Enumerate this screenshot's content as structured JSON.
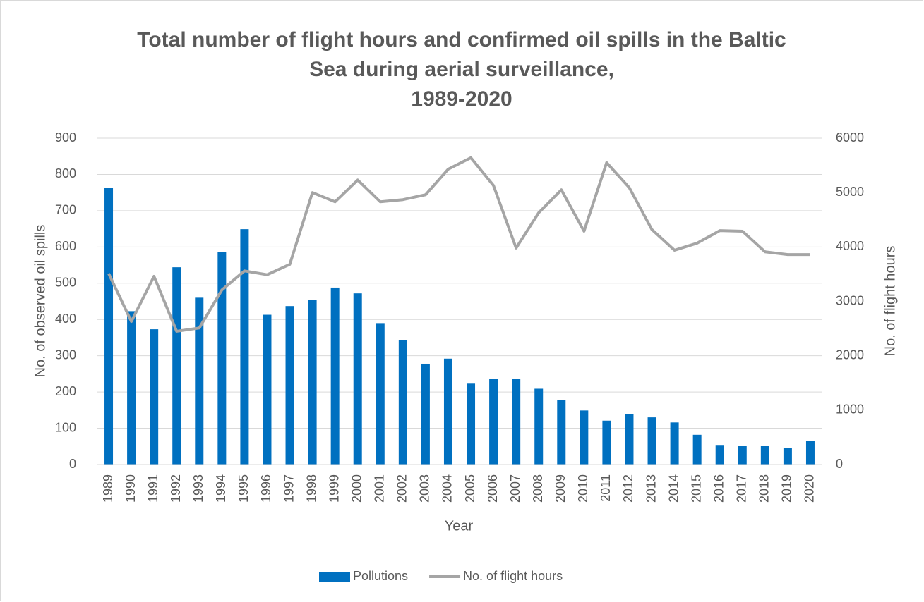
{
  "chart_data": {
    "type": "bar-line",
    "title": [
      "Total number of flight hours and confirmed oil spills in the Baltic",
      "Sea during aerial surveillance,",
      "1989-2020"
    ],
    "x_label": "Year",
    "y_label": "No. of observed oil spills",
    "y2_label": "No. of flight hours",
    "categories": [
      "1989",
      "1990",
      "1991",
      "1992",
      "1993",
      "1994",
      "1995",
      "1996",
      "1997",
      "1998",
      "1999",
      "2000",
      "2001",
      "2002",
      "2003",
      "2004",
      "2005",
      "2006",
      "2007",
      "2008",
      "2009",
      "2010",
      "2011",
      "2012",
      "2013",
      "2014",
      "2015",
      "2016",
      "2017",
      "2018",
      "2019",
      "2020"
    ],
    "series": [
      {
        "name": "Pollutions",
        "type": "bar",
        "color": "#0070c0",
        "values": [
          763,
          423,
          373,
          544,
          460,
          587,
          649,
          413,
          437,
          453,
          488,
          472,
          390,
          343,
          278,
          292,
          223,
          236,
          237,
          209,
          177,
          149,
          121,
          139,
          130,
          116,
          82,
          54,
          51,
          52,
          45,
          65
        ]
      },
      {
        "name": "No. of flight hours",
        "type": "line",
        "axis": "y2",
        "color": "#a5a5a5",
        "values": [
          3510,
          2630,
          3460,
          2450,
          2510,
          3210,
          3560,
          3490,
          3680,
          5000,
          4830,
          5230,
          4830,
          4870,
          4960,
          5430,
          5640,
          5130,
          3980,
          4630,
          5050,
          4290,
          5550,
          5090,
          4320,
          3940,
          4070,
          4300,
          4290,
          3910,
          3860,
          3860
        ]
      }
    ],
    "ylim": [
      0,
      900
    ],
    "yticks": [
      0,
      100,
      200,
      300,
      400,
      500,
      600,
      700,
      800,
      900
    ],
    "y2lim": [
      0,
      6000
    ],
    "y2ticks": [
      0,
      1000,
      2000,
      3000,
      4000,
      5000,
      6000
    ],
    "grid": true,
    "legend": "bottom"
  }
}
